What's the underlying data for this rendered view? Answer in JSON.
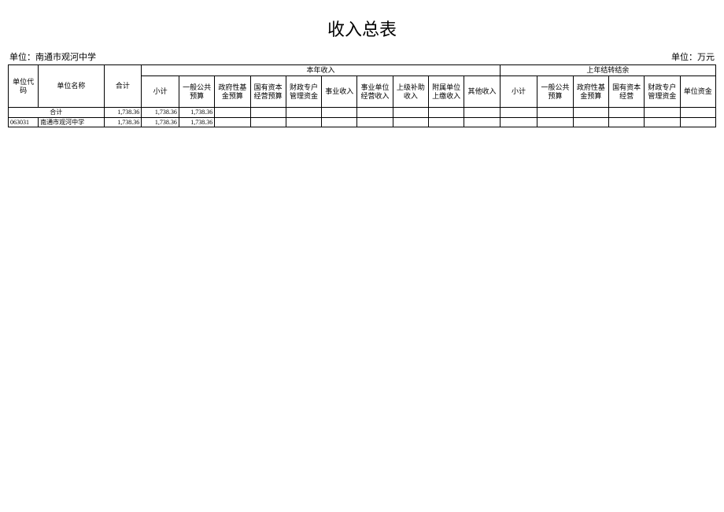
{
  "title": "收入总表",
  "unit_left_label": "单位：",
  "unit_left_value": "南通市观河中学",
  "unit_right": "单位：万元",
  "headers": {
    "code": "单位代码",
    "name": "单位名称",
    "total": "合计",
    "current_year": "本年收入",
    "prev_year": "上年结转结余",
    "sub_total": "小计",
    "general_public_budget": "一般公共预算",
    "gov_fund_budget": "政府性基金预算",
    "state_capital_budget": "国有资本经营预算",
    "fiscal_account_funds": "财政专户管理资金",
    "business_income": "事业收入",
    "business_unit_income": "事业单位经营收入",
    "superior_subsidy": "上级补助收入",
    "affiliated_contribution": "附属单位上缴收入",
    "other_income": "其他收入",
    "prev_subtotal": "小计",
    "prev_general_public": "一般公共预算",
    "prev_gov_fund": "政府性基金预算",
    "prev_state_capital": "国有资本经营",
    "prev_fiscal_account": "财政专户管理资金",
    "prev_unit_funds": "单位资金"
  },
  "rows": [
    {
      "code": "",
      "name": "合计",
      "total": "1,738.36",
      "cy_subtotal": "1,738.36",
      "cy_general": "1,738.36",
      "cy_gov_fund": "",
      "cy_state_cap": "",
      "cy_fiscal": "",
      "cy_business": "",
      "cy_business_unit": "",
      "cy_superior": "",
      "cy_affiliated": "",
      "cy_other": "",
      "py_subtotal": "",
      "py_general": "",
      "py_gov_fund": "",
      "py_state_cap": "",
      "py_fiscal": "",
      "py_unit": ""
    },
    {
      "code": "063031",
      "name": "南通市观河中学",
      "total": "1,738.36",
      "cy_subtotal": "1,738.36",
      "cy_general": "1,738.36",
      "cy_gov_fund": "",
      "cy_state_cap": "",
      "cy_fiscal": "",
      "cy_business": "",
      "cy_business_unit": "",
      "cy_superior": "",
      "cy_affiliated": "",
      "cy_other": "",
      "py_subtotal": "",
      "py_general": "",
      "py_gov_fund": "",
      "py_state_cap": "",
      "py_fiscal": "",
      "py_unit": ""
    }
  ]
}
